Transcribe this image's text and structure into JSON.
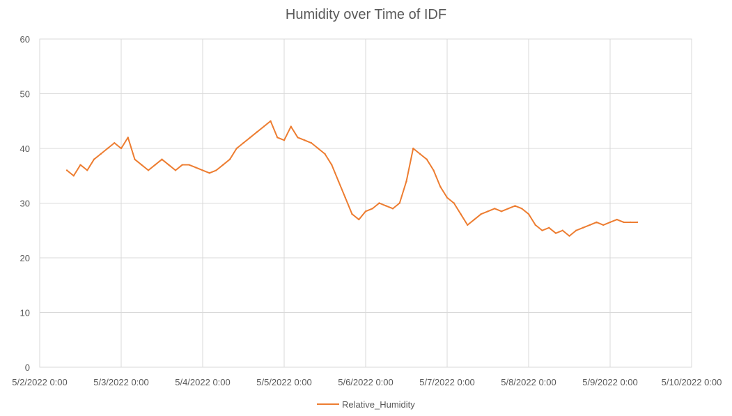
{
  "chart_data": {
    "type": "line",
    "title": "Humidity over Time of IDF",
    "xlabel": "",
    "ylabel": "",
    "xlim": [
      "5/2/2022 0:00",
      "5/10/2022 0:00"
    ],
    "ylim": [
      0,
      60
    ],
    "grid": true,
    "legend_position": "bottom",
    "x_tick_labels": [
      "5/2/2022 0:00",
      "5/3/2022 0:00",
      "5/4/2022 0:00",
      "5/5/2022 0:00",
      "5/6/2022 0:00",
      "5/7/2022 0:00",
      "5/8/2022 0:00",
      "5/9/2022 0:00",
      "5/10/2022 0:00"
    ],
    "y_tick_labels": [
      "0",
      "10",
      "20",
      "30",
      "40",
      "50",
      "60"
    ],
    "series": [
      {
        "name": "Relative_Humidity",
        "color": "#ED7D31",
        "x": [
          "5/2/2022 8:00",
          "5/2/2022 10:00",
          "5/2/2022 12:00",
          "5/2/2022 14:00",
          "5/2/2022 16:00",
          "5/2/2022 18:00",
          "5/2/2022 20:00",
          "5/2/2022 22:00",
          "5/3/2022 0:00",
          "5/3/2022 2:00",
          "5/3/2022 4:00",
          "5/3/2022 6:00",
          "5/3/2022 8:00",
          "5/3/2022 10:00",
          "5/3/2022 12:00",
          "5/3/2022 14:00",
          "5/3/2022 16:00",
          "5/3/2022 18:00",
          "5/3/2022 20:00",
          "5/3/2022 22:00",
          "5/4/2022 0:00",
          "5/4/2022 2:00",
          "5/4/2022 4:00",
          "5/4/2022 6:00",
          "5/4/2022 8:00",
          "5/4/2022 10:00",
          "5/4/2022 12:00",
          "5/4/2022 14:00",
          "5/4/2022 16:00",
          "5/4/2022 18:00",
          "5/4/2022 20:00",
          "5/4/2022 22:00",
          "5/5/2022 0:00",
          "5/5/2022 2:00",
          "5/5/2022 4:00",
          "5/5/2022 6:00",
          "5/5/2022 8:00",
          "5/5/2022 10:00",
          "5/5/2022 12:00",
          "5/5/2022 14:00",
          "5/5/2022 16:00",
          "5/5/2022 18:00",
          "5/5/2022 20:00",
          "5/5/2022 22:00",
          "5/6/2022 0:00",
          "5/6/2022 2:00",
          "5/6/2022 4:00",
          "5/6/2022 6:00",
          "5/6/2022 8:00",
          "5/6/2022 10:00",
          "5/6/2022 12:00",
          "5/6/2022 14:00",
          "5/6/2022 16:00",
          "5/6/2022 18:00",
          "5/6/2022 20:00",
          "5/6/2022 22:00",
          "5/7/2022 0:00",
          "5/7/2022 2:00",
          "5/7/2022 4:00",
          "5/7/2022 6:00",
          "5/7/2022 8:00",
          "5/7/2022 10:00",
          "5/7/2022 12:00",
          "5/7/2022 14:00",
          "5/7/2022 16:00",
          "5/7/2022 18:00",
          "5/7/2022 20:00",
          "5/7/2022 22:00",
          "5/8/2022 0:00",
          "5/8/2022 2:00",
          "5/8/2022 4:00",
          "5/8/2022 6:00",
          "5/8/2022 8:00",
          "5/8/2022 10:00",
          "5/8/2022 12:00",
          "5/8/2022 14:00",
          "5/8/2022 16:00",
          "5/8/2022 18:00",
          "5/8/2022 20:00",
          "5/8/2022 22:00",
          "5/9/2022 0:00",
          "5/9/2022 2:00",
          "5/9/2022 4:00",
          "5/9/2022 6:00",
          "5/9/2022 8:00"
        ],
        "values": [
          36,
          35,
          37,
          36,
          38,
          39,
          40,
          41,
          40,
          42,
          38,
          37,
          36,
          37,
          38,
          37,
          36,
          37,
          37,
          36.5,
          36,
          35.5,
          36,
          37,
          38,
          40,
          41,
          42,
          43,
          44,
          45,
          42,
          41.5,
          44,
          42,
          41.5,
          41,
          40,
          39,
          37,
          34,
          31,
          28,
          27,
          28.5,
          29,
          30,
          29.5,
          29,
          30,
          34,
          40,
          39,
          38,
          36,
          33,
          31,
          30,
          28,
          26,
          27,
          28,
          28.5,
          29,
          28.5,
          29,
          29.5,
          29,
          28,
          26,
          25,
          25.5,
          24.5,
          25,
          24,
          25,
          25.5,
          26,
          26.5,
          26,
          26.5,
          27,
          26.5,
          26.5,
          26.5
        ]
      }
    ]
  }
}
